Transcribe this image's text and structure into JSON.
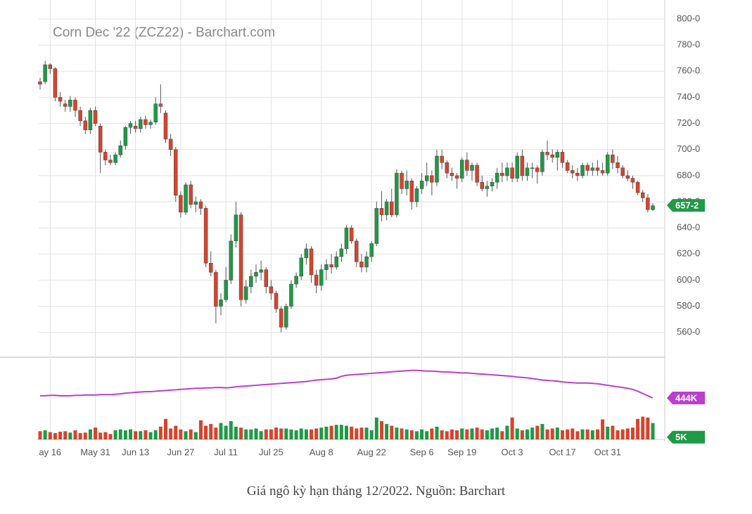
{
  "chart_data": {
    "type": "candlestick",
    "title": "Corn Dec '22 (ZCZ22) - Barchart.com",
    "caption": "Giá ngô kỳ hạn tháng 12/2022. Nguồn: Barchart",
    "up_color": "#1f9a45",
    "down_color": "#d8432c",
    "oi_color": "#b93fcf",
    "grid": true,
    "ylim": [
      541,
      800
    ],
    "yticks": [
      {
        "value": 560,
        "label": "560-0"
      },
      {
        "value": 580,
        "label": "580-0"
      },
      {
        "value": 600,
        "label": "600-0"
      },
      {
        "value": 620,
        "label": "620-0"
      },
      {
        "value": 640,
        "label": "640-0"
      },
      {
        "value": 660,
        "label": "660-0"
      },
      {
        "value": 680,
        "label": "680-0"
      },
      {
        "value": 700,
        "label": "700-0"
      },
      {
        "value": 720,
        "label": "720-0"
      },
      {
        "value": 740,
        "label": "740-0"
      },
      {
        "value": 760,
        "label": "760-0"
      },
      {
        "value": 780,
        "label": "780-0"
      },
      {
        "value": 800,
        "label": "800-0"
      }
    ],
    "last_price": {
      "value": 657.25,
      "label": "657-2"
    },
    "categories": [
      null,
      null,
      "ay 16",
      null,
      null,
      null,
      null,
      null,
      null,
      null,
      null,
      "May 31",
      null,
      null,
      null,
      null,
      null,
      null,
      null,
      "Jun 13",
      null,
      null,
      null,
      null,
      null,
      null,
      null,
      null,
      "Jun 27",
      null,
      null,
      null,
      null,
      null,
      null,
      null,
      null,
      "Jul 11",
      null,
      null,
      null,
      null,
      null,
      null,
      null,
      null,
      "Jul 25",
      null,
      null,
      null,
      null,
      null,
      null,
      null,
      null,
      null,
      "Aug 8",
      null,
      null,
      null,
      null,
      null,
      null,
      null,
      null,
      null,
      "Aug 22",
      null,
      null,
      null,
      null,
      null,
      null,
      null,
      null,
      null,
      "Sep 6",
      null,
      null,
      null,
      null,
      null,
      null,
      null,
      "Sep 19",
      null,
      null,
      null,
      null,
      null,
      null,
      null,
      null,
      null,
      "Oct 3",
      null,
      null,
      null,
      null,
      null,
      null,
      null,
      null,
      null,
      "Oct 17",
      null,
      null,
      null,
      null,
      null,
      null,
      null,
      null,
      "Oct 31",
      null,
      null,
      null,
      null,
      null,
      null,
      null,
      null,
      null
    ],
    "ohlc": [
      [
        752,
        755,
        746,
        750
      ],
      [
        752,
        768,
        750,
        765
      ],
      [
        765,
        766,
        758,
        762
      ],
      [
        762,
        763,
        737,
        740
      ],
      [
        740,
        744,
        733,
        737
      ],
      [
        735,
        738,
        729,
        733
      ],
      [
        733,
        741,
        729,
        738
      ],
      [
        738,
        740,
        725,
        730
      ],
      [
        730,
        733,
        718,
        722
      ],
      [
        722,
        725,
        712,
        715
      ],
      [
        715,
        732,
        712,
        730
      ],
      [
        730,
        733,
        718,
        720
      ],
      [
        718,
        720,
        682,
        698
      ],
      [
        698,
        700,
        688,
        692
      ],
      [
        692,
        696,
        688,
        690
      ],
      [
        690,
        698,
        688,
        696
      ],
      [
        696,
        707,
        694,
        703
      ],
      [
        703,
        718,
        700,
        717
      ],
      [
        717,
        722,
        712,
        720
      ],
      [
        718,
        722,
        713,
        716
      ],
      [
        716,
        725,
        713,
        723
      ],
      [
        723,
        726,
        716,
        719
      ],
      [
        719,
        723,
        716,
        721
      ],
      [
        721,
        740,
        719,
        735
      ],
      [
        735,
        750,
        728,
        733
      ],
      [
        728,
        730,
        705,
        708
      ],
      [
        708,
        712,
        695,
        700
      ],
      [
        700,
        702,
        660,
        665
      ],
      [
        665,
        668,
        648,
        652
      ],
      [
        652,
        675,
        650,
        673
      ],
      [
        673,
        676,
        655,
        658
      ],
      [
        658,
        664,
        652,
        660
      ],
      [
        660,
        662,
        650,
        655
      ],
      [
        655,
        657,
        610,
        613
      ],
      [
        613,
        622,
        603,
        606
      ],
      [
        606,
        608,
        567,
        580
      ],
      [
        580,
        590,
        573,
        585
      ],
      [
        585,
        610,
        583,
        600
      ],
      [
        600,
        635,
        597,
        630
      ],
      [
        630,
        660,
        625,
        650
      ],
      [
        650,
        652,
        580,
        585
      ],
      [
        585,
        600,
        582,
        595
      ],
      [
        595,
        608,
        590,
        603
      ],
      [
        603,
        612,
        598,
        606
      ],
      [
        606,
        615,
        600,
        608
      ],
      [
        608,
        610,
        590,
        595
      ],
      [
        595,
        600,
        585,
        590
      ],
      [
        590,
        592,
        575,
        578
      ],
      [
        578,
        580,
        560,
        564
      ],
      [
        564,
        582,
        562,
        580
      ],
      [
        580,
        600,
        578,
        597
      ],
      [
        597,
        606,
        594,
        603
      ],
      [
        603,
        620,
        600,
        617
      ],
      [
        617,
        628,
        612,
        624
      ],
      [
        624,
        626,
        598,
        604
      ],
      [
        604,
        608,
        590,
        596
      ],
      [
        596,
        612,
        592,
        608
      ],
      [
        608,
        616,
        600,
        612
      ],
      [
        612,
        620,
        605,
        610
      ],
      [
        610,
        622,
        608,
        618
      ],
      [
        618,
        628,
        614,
        624
      ],
      [
        624,
        642,
        620,
        640
      ],
      [
        640,
        642,
        628,
        630
      ],
      [
        630,
        632,
        610,
        614
      ],
      [
        614,
        620,
        606,
        610
      ],
      [
        610,
        622,
        606,
        618
      ],
      [
        618,
        630,
        614,
        628
      ],
      [
        628,
        660,
        626,
        655
      ],
      [
        655,
        668,
        645,
        650
      ],
      [
        650,
        662,
        646,
        660
      ],
      [
        660,
        670,
        648,
        650
      ],
      [
        650,
        685,
        648,
        682
      ],
      [
        682,
        684,
        666,
        670
      ],
      [
        670,
        684,
        665,
        676
      ],
      [
        676,
        678,
        654,
        660
      ],
      [
        660,
        672,
        656,
        670
      ],
      [
        670,
        682,
        666,
        676
      ],
      [
        676,
        690,
        672,
        680
      ],
      [
        680,
        684,
        665,
        675
      ],
      [
        675,
        700,
        672,
        695
      ],
      [
        695,
        700,
        685,
        690
      ],
      [
        690,
        692,
        678,
        682
      ],
      [
        682,
        686,
        676,
        680
      ],
      [
        680,
        682,
        670,
        678
      ],
      [
        678,
        694,
        675,
        692
      ],
      [
        692,
        698,
        680,
        684
      ],
      [
        684,
        690,
        676,
        688
      ],
      [
        688,
        690,
        672,
        675
      ],
      [
        675,
        680,
        668,
        670
      ],
      [
        670,
        676,
        664,
        672
      ],
      [
        672,
        678,
        668,
        675
      ],
      [
        675,
        686,
        670,
        682
      ],
      [
        682,
        690,
        675,
        680
      ],
      [
        680,
        690,
        676,
        686
      ],
      [
        686,
        690,
        675,
        678
      ],
      [
        678,
        698,
        675,
        695
      ],
      [
        695,
        700,
        676,
        680
      ],
      [
        680,
        690,
        676,
        686
      ],
      [
        686,
        690,
        678,
        686
      ],
      [
        686,
        688,
        674,
        683
      ],
      [
        683,
        700,
        680,
        698
      ],
      [
        698,
        707,
        692,
        696
      ],
      [
        696,
        700,
        690,
        694
      ],
      [
        694,
        700,
        684,
        698
      ],
      [
        698,
        700,
        686,
        690
      ],
      [
        690,
        692,
        682,
        684
      ],
      [
        684,
        688,
        678,
        682
      ],
      [
        682,
        686,
        676,
        680
      ],
      [
        680,
        690,
        678,
        688
      ],
      [
        688,
        690,
        680,
        684
      ],
      [
        684,
        690,
        680,
        686
      ],
      [
        686,
        692,
        680,
        684
      ],
      [
        684,
        690,
        680,
        682
      ],
      [
        682,
        698,
        680,
        696
      ],
      [
        696,
        700,
        685,
        690
      ],
      [
        690,
        695,
        682,
        686
      ],
      [
        686,
        688,
        678,
        680
      ],
      [
        680,
        684,
        676,
        678
      ],
      [
        678,
        680,
        670,
        675
      ],
      [
        675,
        676,
        665,
        667
      ],
      [
        667,
        669,
        660,
        663
      ],
      [
        663,
        666,
        652,
        654
      ],
      [
        654,
        659,
        653,
        657
      ]
    ],
    "volume_ylim": [
      0,
      100
    ],
    "volume_label": {
      "value": 5,
      "label": "5K"
    },
    "volume": [
      18,
      20,
      16,
      14,
      17,
      18,
      15,
      20,
      14,
      15,
      22,
      26,
      15,
      16,
      12,
      20,
      22,
      20,
      22,
      18,
      18,
      20,
      16,
      20,
      28,
      45,
      24,
      30,
      22,
      18,
      22,
      16,
      42,
      30,
      34,
      26,
      36,
      30,
      40,
      28,
      26,
      22,
      22,
      24,
      18,
      22,
      22,
      26,
      24,
      24,
      22,
      20,
      24,
      22,
      22,
      24,
      26,
      28,
      30,
      32,
      32,
      30,
      28,
      24,
      26,
      26,
      20,
      48,
      40,
      34,
      30,
      26,
      24,
      22,
      20,
      18,
      22,
      18,
      24,
      28,
      20,
      18,
      22,
      20,
      24,
      22,
      24,
      26,
      22,
      20,
      24,
      26,
      18,
      30,
      48,
      24,
      20,
      22,
      26,
      30,
      34,
      22,
      24,
      26,
      20,
      22,
      24,
      18,
      22,
      22,
      20,
      22,
      44,
      28,
      30,
      20,
      22,
      24,
      26,
      45,
      50,
      48,
      36
    ],
    "oi_ylim": [
      380,
      540
    ],
    "oi_label": {
      "value": 444,
      "label": "444K"
    },
    "open_interest": [
      450,
      450,
      451,
      451,
      450,
      450,
      450,
      451,
      451,
      452,
      452,
      452,
      453,
      453,
      453,
      454,
      455,
      457,
      458,
      459,
      460,
      461,
      461,
      462,
      463,
      464,
      465,
      466,
      467,
      468,
      469,
      470,
      470,
      471,
      471,
      472,
      472,
      471,
      472,
      474,
      475,
      476,
      477,
      478,
      479,
      480,
      481,
      482,
      483,
      484,
      485,
      486,
      487,
      488,
      490,
      492,
      493,
      494,
      495,
      497,
      502,
      505,
      506,
      507,
      508,
      509,
      510,
      511,
      512,
      513,
      514,
      515,
      516,
      517,
      518,
      518,
      517,
      516,
      516,
      515,
      514,
      514,
      513,
      512,
      511,
      511,
      510,
      509,
      508,
      507,
      506,
      505,
      504,
      503,
      502,
      500,
      499,
      498,
      496,
      494,
      492,
      491,
      490,
      489,
      487,
      486,
      485,
      484,
      484,
      484,
      483,
      482,
      480,
      478,
      476,
      474,
      472,
      470,
      467,
      462,
      456,
      450,
      444
    ]
  }
}
